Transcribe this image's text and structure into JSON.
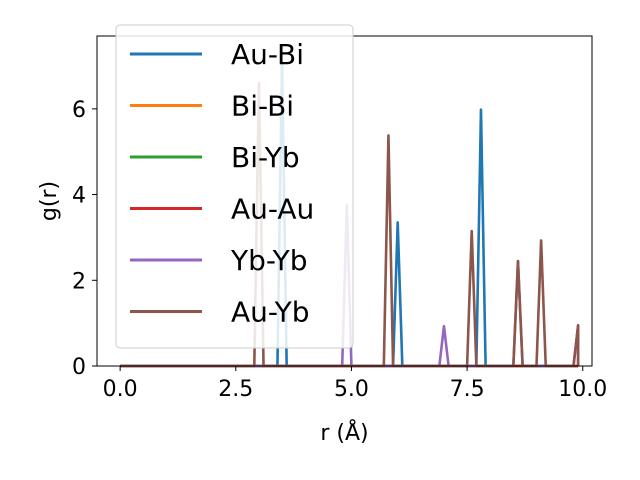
{
  "chart_data": {
    "type": "line",
    "title": "",
    "xlabel": "r (Å)",
    "ylabel": "g(r)",
    "xlim": [
      -0.5,
      10.2
    ],
    "ylim": [
      0,
      7.7
    ],
    "xticks": [
      0.0,
      2.5,
      5.0,
      7.5,
      10.0
    ],
    "xtick_labels": [
      "0.0",
      "2.5",
      "5.0",
      "7.5",
      "10.0"
    ],
    "yticks": [
      0,
      2,
      4,
      6
    ],
    "ytick_labels": [
      "0",
      "2",
      "4",
      "6"
    ],
    "grid": false,
    "legend_position": "upper-left",
    "x_start": 0.0,
    "x_end": 9.9,
    "peak_half_width": 0.1,
    "series": [
      {
        "name": "Au-Bi",
        "color": "#1f77b4",
        "peaks": [
          [
            3.5,
            7.1
          ],
          [
            6.0,
            3.35
          ],
          [
            7.8,
            5.98
          ]
        ]
      },
      {
        "name": "Bi-Bi",
        "color": "#ff7f0e",
        "peaks": []
      },
      {
        "name": "Bi-Yb",
        "color": "#2ca02c",
        "peaks": []
      },
      {
        "name": "Au-Au",
        "color": "#d62728",
        "peaks": []
      },
      {
        "name": "Yb-Yb",
        "color": "#9467bd",
        "peaks": [
          [
            4.9,
            3.75
          ],
          [
            7.0,
            0.93
          ],
          [
            8.6,
            2.45
          ],
          [
            9.9,
            0.95
          ]
        ]
      },
      {
        "name": "Au-Yb",
        "color": "#8c564b",
        "peaks": [
          [
            3.0,
            6.6
          ],
          [
            5.8,
            5.38
          ],
          [
            7.6,
            3.15
          ],
          [
            8.6,
            2.45
          ],
          [
            9.1,
            2.93
          ],
          [
            9.9,
            0.95
          ]
        ]
      }
    ]
  }
}
